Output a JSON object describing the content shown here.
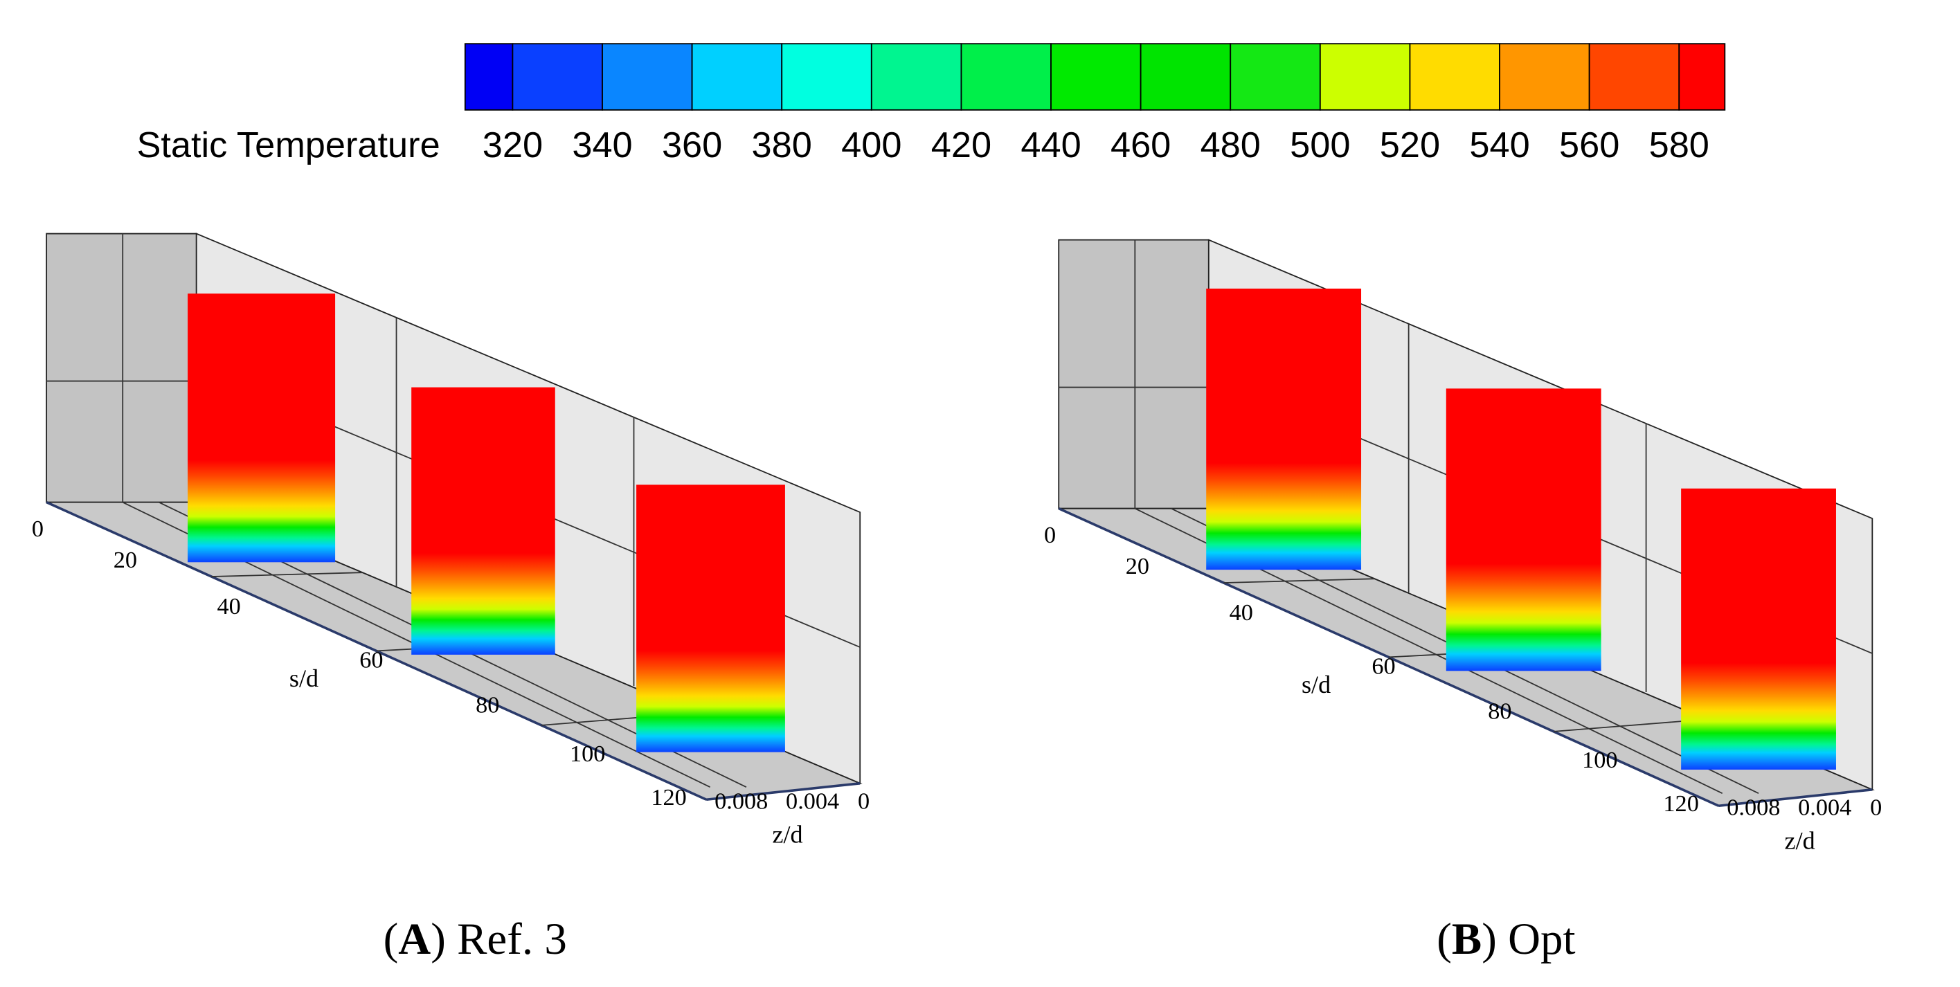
{
  "colorbar": {
    "title": "Static Temperature",
    "labels": [
      320,
      340,
      360,
      380,
      400,
      420,
      440,
      460,
      480,
      500,
      520,
      540,
      560,
      580
    ],
    "colors": [
      "#0000f5",
      "#0a40ff",
      "#0a86ff",
      "#00d0ff",
      "#00ffe0",
      "#00f590",
      "#00ef4a",
      "#00ea00",
      "#00e400",
      "#14e814",
      "#ccff00",
      "#ffdc00",
      "#ff9600",
      "#ff4600",
      "#ff0000"
    ]
  },
  "panels": [
    {
      "s_label": "s/d",
      "s_ticks": [
        0,
        20,
        40,
        60,
        80,
        100,
        120
      ],
      "z_label": "z/d",
      "z_ticks": [
        "0.008",
        "0.004",
        "0"
      ],
      "caption": [
        "(",
        "A",
        ") Ref. 3"
      ]
    },
    {
      "s_label": "s/d",
      "s_ticks": [
        0,
        20,
        40,
        60,
        80,
        100,
        120
      ],
      "z_label": "z/d",
      "z_ticks": [
        "0.008",
        "0.004",
        "0"
      ],
      "caption": [
        "(",
        "B",
        ") Opt"
      ]
    }
  ]
}
